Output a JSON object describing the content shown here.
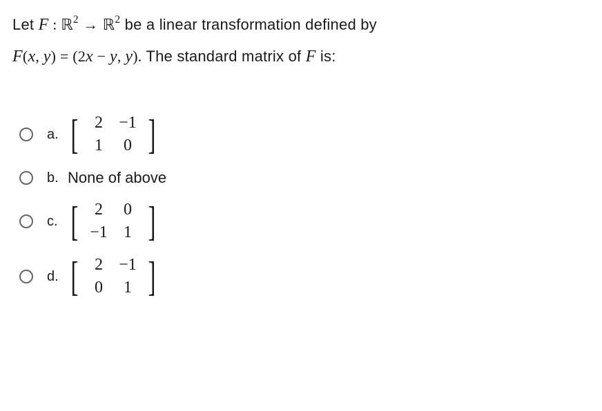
{
  "question": {
    "line1_prefix": "Let ",
    "line1_suffix": " be a linear transformation defined by",
    "line2_suffix": " The standard matrix of ",
    "line2_end": " is:",
    "blackboard_R": "ℝ",
    "var_F": "F",
    "var_x": "x",
    "var_y": "y",
    "arrow": "→",
    "exp": "2",
    "func_expr_open": "(",
    "func_expr_args": "x, y",
    "func_expr_close": ")",
    "eq": " = ",
    "func_val_open": "(",
    "func_val_1a": "2",
    "func_val_1b": "x",
    "func_val_minus": " − ",
    "func_val_1c": "y",
    "func_val_sep": ", ",
    "func_val_2": "y",
    "func_val_close": ").",
    "colon": " : "
  },
  "options": {
    "a": {
      "label": "a.",
      "type": "matrix",
      "rows": [
        [
          "2",
          "−1"
        ],
        [
          "1",
          "0"
        ]
      ]
    },
    "b": {
      "label": "b.",
      "type": "text",
      "text": "None of above"
    },
    "c": {
      "label": "c.",
      "type": "matrix",
      "rows": [
        [
          "2",
          "0"
        ],
        [
          "−1",
          "1"
        ]
      ]
    },
    "d": {
      "label": "d.",
      "type": "matrix",
      "rows": [
        [
          "2",
          "−1"
        ],
        [
          "0",
          "1"
        ]
      ]
    }
  },
  "brackets": {
    "left": "[",
    "right": "]"
  }
}
